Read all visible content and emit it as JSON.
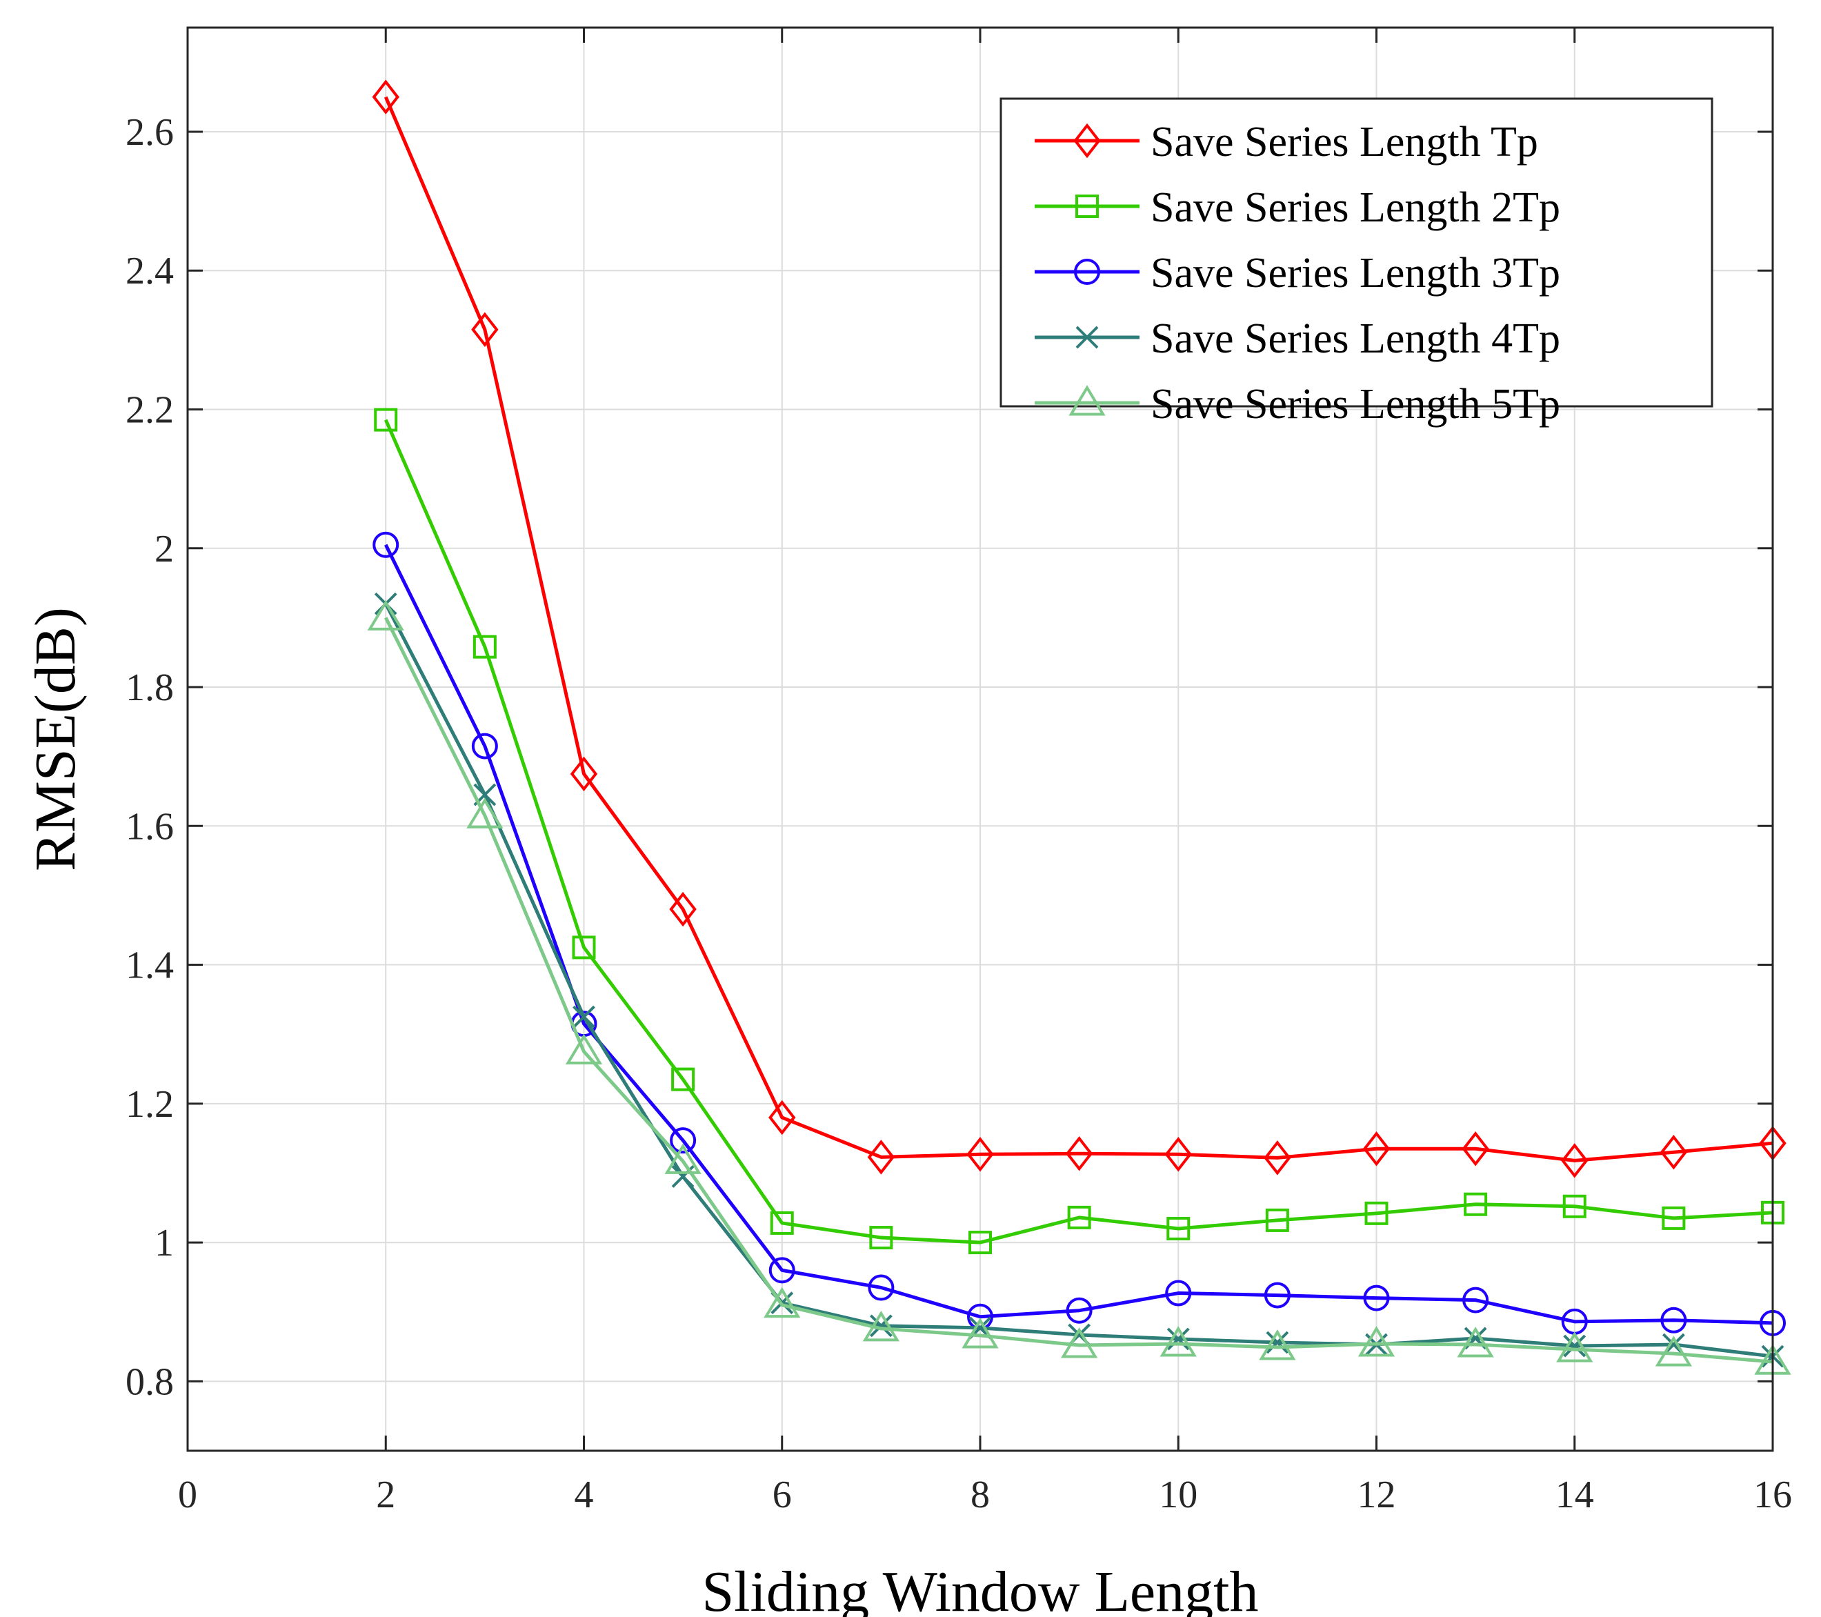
{
  "chart_data": {
    "type": "line",
    "title": "",
    "xlabel": "Sliding Window Length",
    "ylabel": "RMSE(dB)",
    "xlim": [
      0,
      16
    ],
    "ylim": [
      0.7,
      2.75
    ],
    "grid": true,
    "legend_position": "top-right",
    "x_ticks": [
      0,
      2,
      4,
      6,
      8,
      10,
      12,
      14,
      16
    ],
    "x_tick_labels": [
      "0",
      "2",
      "4",
      "6",
      "8",
      "10",
      "12",
      "14",
      "16"
    ],
    "y_ticks": [
      0.8,
      1.0,
      1.2,
      1.4,
      1.6,
      1.8,
      2.0,
      2.2,
      2.4,
      2.6
    ],
    "y_tick_labels": [
      "0.8",
      "1",
      "1.2",
      "1.4",
      "1.6",
      "1.8",
      "2",
      "2.2",
      "2.4",
      "2.6"
    ],
    "x": [
      2,
      3,
      4,
      5,
      6,
      7,
      8,
      9,
      10,
      11,
      12,
      13,
      14,
      15,
      16
    ],
    "series": [
      {
        "name": "Save Series Length Tp",
        "color": "#ff0000",
        "marker": "diamond",
        "values": [
          2.65,
          2.315,
          1.675,
          1.48,
          1.18,
          1.123,
          1.127,
          1.128,
          1.127,
          1.122,
          1.135,
          1.135,
          1.118,
          1.13,
          1.143
        ]
      },
      {
        "name": "Save Series Length 2Tp",
        "color": "#33cc00",
        "marker": "square",
        "values": [
          2.185,
          1.858,
          1.425,
          1.235,
          1.028,
          1.007,
          1.0,
          1.036,
          1.02,
          1.032,
          1.042,
          1.055,
          1.052,
          1.035,
          1.043
        ]
      },
      {
        "name": "Save Series Length 3Tp",
        "color": "#1f00ff",
        "marker": "circle",
        "values": [
          2.005,
          1.715,
          1.315,
          1.147,
          0.96,
          0.935,
          0.893,
          0.902,
          0.927,
          0.924,
          0.92,
          0.917,
          0.886,
          0.888,
          0.884
        ]
      },
      {
        "name": "Save Series Length 4Tp",
        "color": "#2e7d78",
        "marker": "x",
        "values": [
          1.92,
          1.645,
          1.325,
          1.095,
          0.913,
          0.88,
          0.877,
          0.867,
          0.861,
          0.856,
          0.853,
          0.862,
          0.851,
          0.853,
          0.836
        ]
      },
      {
        "name": "Save Series Length 5Tp",
        "color": "#7dc98a",
        "marker": "triangle",
        "values": [
          1.9,
          1.615,
          1.275,
          1.117,
          0.91,
          0.876,
          0.866,
          0.852,
          0.854,
          0.849,
          0.854,
          0.853,
          0.846,
          0.84,
          0.828
        ]
      }
    ]
  }
}
